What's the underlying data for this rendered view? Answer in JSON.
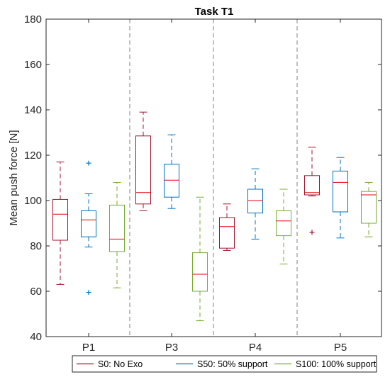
{
  "chart_data": {
    "type": "box",
    "title": "Task T1",
    "xlabel": "",
    "ylabel": "Mean push force [N]",
    "ylim": [
      40,
      180
    ],
    "yticks": [
      40,
      60,
      80,
      100,
      120,
      140,
      160,
      180
    ],
    "categories": [
      "P1",
      "P3",
      "P4",
      "P5"
    ],
    "grid": false,
    "legend_position": "bottom",
    "series": [
      {
        "name": "S0: No Exo",
        "color": "#A2142F",
        "boxes": [
          {
            "whisker_low": 63,
            "q1": 82.5,
            "median": 94,
            "q3": 100.5,
            "whisker_high": 117,
            "outliers": []
          },
          {
            "whisker_low": 95.5,
            "q1": 98.5,
            "median": 103.5,
            "q3": 128.5,
            "whisker_high": 139,
            "outliers": []
          },
          {
            "whisker_low": 78,
            "q1": 79,
            "median": 88.5,
            "q3": 92.5,
            "whisker_high": 98.5,
            "outliers": []
          },
          {
            "whisker_low": 102,
            "q1": 102.5,
            "median": 103.5,
            "q3": 111,
            "whisker_high": 123.5,
            "outliers": [
              86
            ]
          }
        ]
      },
      {
        "name": "S50: 50% support",
        "color": "#0072BD",
        "boxes": [
          {
            "whisker_low": 79.5,
            "q1": 84,
            "median": 91.5,
            "q3": 95.5,
            "whisker_high": 103,
            "outliers": [
              116.5,
              59.5
            ]
          },
          {
            "whisker_low": 96.5,
            "q1": 101.5,
            "median": 109,
            "q3": 116,
            "whisker_high": 129,
            "outliers": []
          },
          {
            "whisker_low": 83,
            "q1": 94.5,
            "median": 100,
            "q3": 105,
            "whisker_high": 114,
            "outliers": []
          },
          {
            "whisker_low": 83.5,
            "q1": 95,
            "median": 108,
            "q3": 113,
            "whisker_high": 119,
            "outliers": []
          }
        ]
      },
      {
        "name": "S100: 100% support",
        "color": "#77AC30",
        "boxes": [
          {
            "whisker_low": 61.5,
            "q1": 77.5,
            "median": 83,
            "q3": 98,
            "whisker_high": 108,
            "outliers": []
          },
          {
            "whisker_low": 47,
            "q1": 60,
            "median": 67.5,
            "q3": 77,
            "whisker_high": 101.5,
            "outliers": []
          },
          {
            "whisker_low": 72,
            "q1": 84.5,
            "median": 91,
            "q3": 95.5,
            "whisker_high": 105,
            "outliers": []
          },
          {
            "whisker_low": 84,
            "q1": 90,
            "median": 102.5,
            "q3": 104,
            "whisker_high": 108,
            "outliers": []
          }
        ]
      }
    ]
  }
}
